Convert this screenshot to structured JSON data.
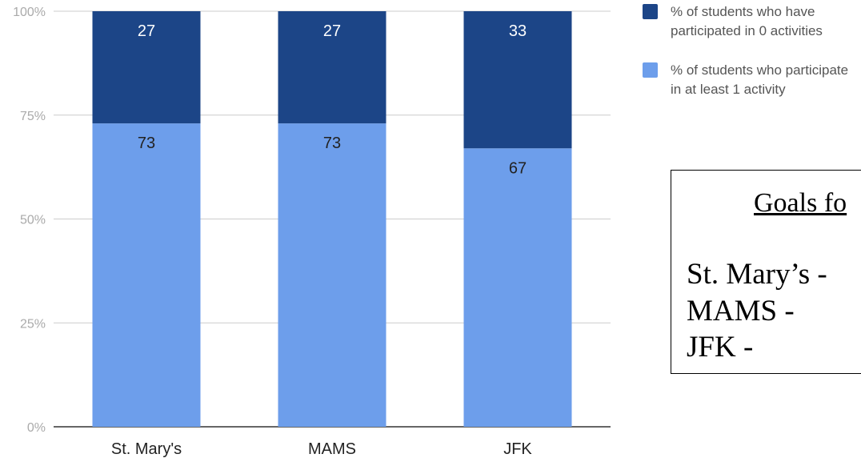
{
  "chart_data": {
    "type": "bar",
    "stacked": true,
    "categories": [
      "St. Mary's",
      "MAMS",
      "JFK"
    ],
    "series": [
      {
        "name": "% of students who participate in at least 1 activity",
        "values": [
          73,
          73,
          67
        ],
        "color": "#6d9eeb"
      },
      {
        "name": "% of students who have participated in 0 activities",
        "values": [
          27,
          27,
          33
        ],
        "color": "#1c4587"
      }
    ],
    "yticks": [
      "0%",
      "25%",
      "50%",
      "75%",
      "100%"
    ],
    "ylim": [
      0,
      100
    ],
    "grid": true,
    "legend": "right"
  },
  "legend": [
    {
      "label": "% of students who have participated in 0 activities",
      "color": "#1c4587"
    },
    {
      "label": "% of students who participate in at least 1 activity",
      "color": "#6d9eeb"
    }
  ],
  "goals": {
    "title": "Goals fo",
    "lines": [
      "St. Mary’s -",
      "MAMS -",
      "JFK -"
    ]
  }
}
